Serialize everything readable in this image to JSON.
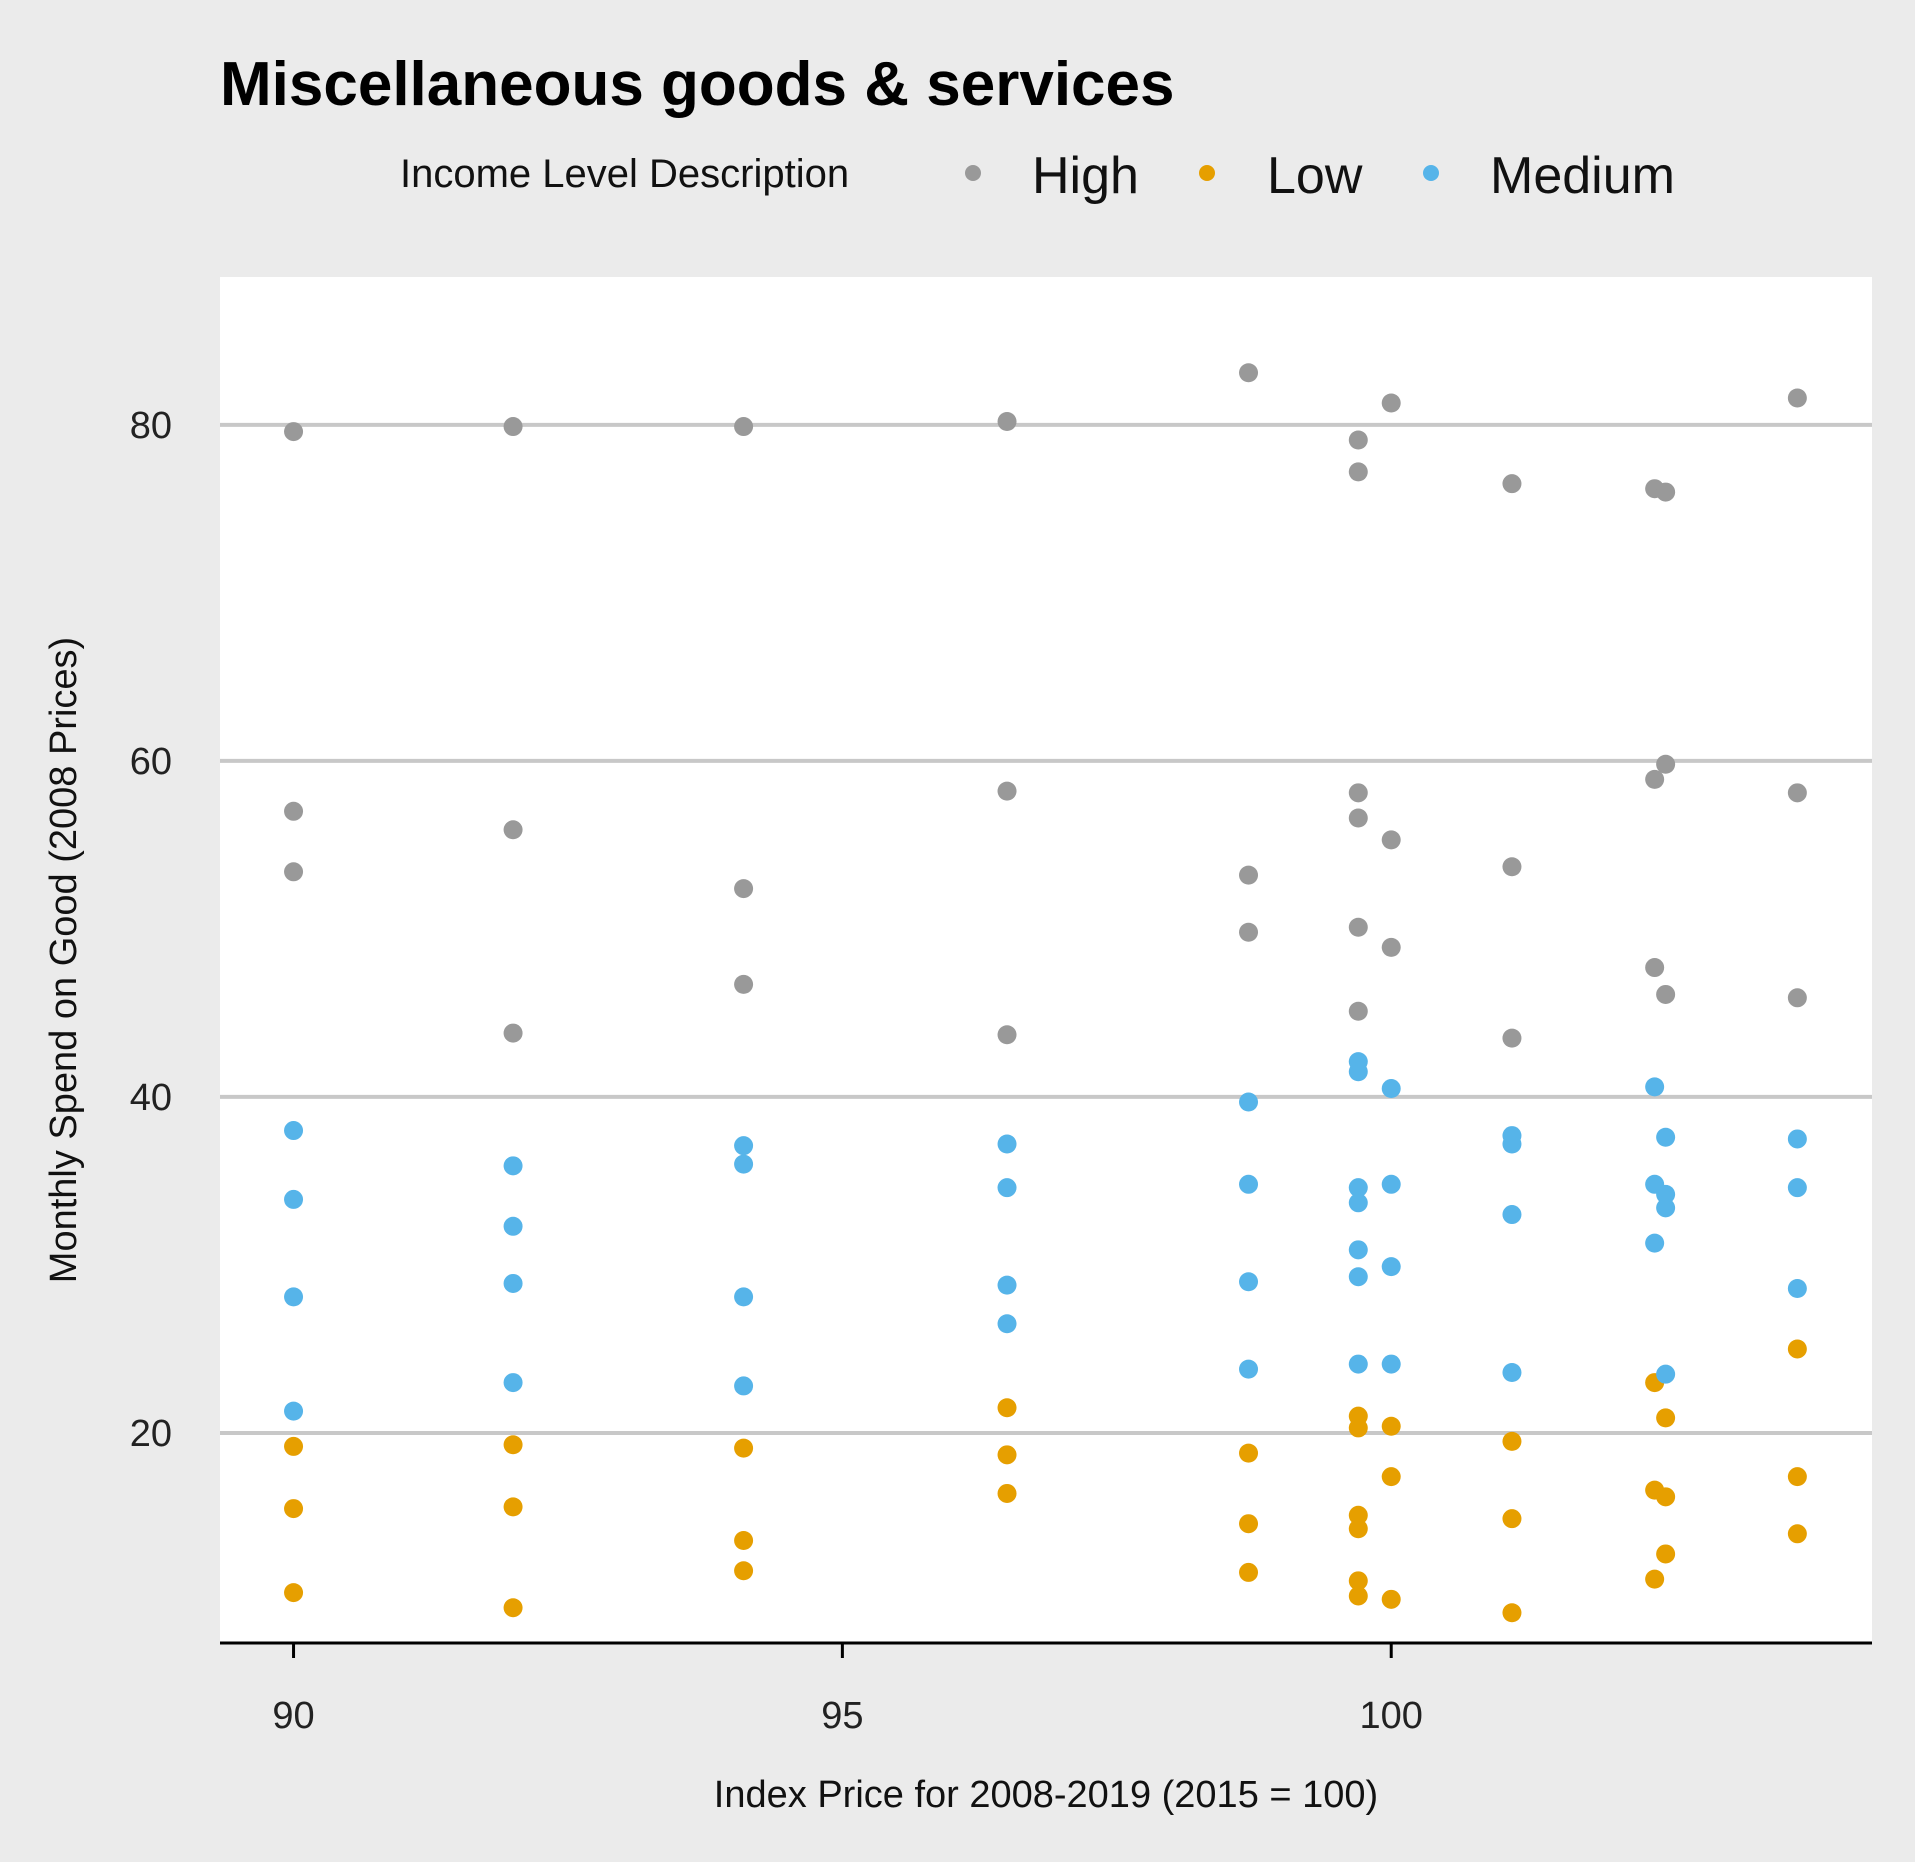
{
  "chart_data": {
    "type": "scatter",
    "title": "Miscellaneous goods & services",
    "xlabel": "Index Price for 2008-2019 (2015 = 100)",
    "ylabel": "Monthly Spend on Good (2008 Prices)",
    "xlim": [
      89.33,
      104.38
    ],
    "ylim": [
      7.5,
      88.8
    ],
    "xticks": [
      90,
      95,
      100
    ],
    "yticks": [
      20,
      40,
      60,
      80
    ],
    "grid": "horizontal-major",
    "legend": {
      "title": "Income Level Description",
      "placement": "top",
      "entries": [
        "High",
        "Low",
        "Medium"
      ]
    },
    "colors": {
      "High": "#999999",
      "Low": "#E69F00",
      "Medium": "#56B4E9"
    },
    "series": [
      {
        "name": "High",
        "points": [
          [
            90.0,
            79.6
          ],
          [
            90.0,
            57.0
          ],
          [
            90.0,
            53.4
          ],
          [
            92.0,
            79.9
          ],
          [
            92.0,
            55.9
          ],
          [
            92.0,
            43.8
          ],
          [
            94.1,
            79.9
          ],
          [
            94.1,
            52.4
          ],
          [
            94.1,
            46.7
          ],
          [
            96.5,
            80.2
          ],
          [
            96.5,
            58.2
          ],
          [
            96.5,
            43.7
          ],
          [
            98.7,
            83.1
          ],
          [
            98.7,
            53.2
          ],
          [
            98.7,
            49.8
          ],
          [
            99.7,
            79.1
          ],
          [
            99.7,
            77.2
          ],
          [
            99.7,
            58.1
          ],
          [
            99.7,
            56.6
          ],
          [
            99.7,
            50.1
          ],
          [
            99.7,
            45.1
          ],
          [
            100.0,
            81.3
          ],
          [
            100.0,
            55.3
          ],
          [
            100.0,
            48.9
          ],
          [
            101.1,
            76.5
          ],
          [
            101.1,
            53.7
          ],
          [
            101.1,
            43.5
          ],
          [
            102.4,
            76.2
          ],
          [
            102.4,
            58.9
          ],
          [
            102.4,
            47.7
          ],
          [
            102.5,
            76.0
          ],
          [
            102.5,
            59.8
          ],
          [
            102.5,
            46.1
          ],
          [
            103.7,
            81.6
          ],
          [
            103.7,
            58.1
          ],
          [
            103.7,
            45.9
          ]
        ]
      },
      {
        "name": "Low",
        "points": [
          [
            90.0,
            19.2
          ],
          [
            90.0,
            15.5
          ],
          [
            90.0,
            10.5
          ],
          [
            92.0,
            19.3
          ],
          [
            92.0,
            15.6
          ],
          [
            92.0,
            9.6
          ],
          [
            94.1,
            19.1
          ],
          [
            94.1,
            13.6
          ],
          [
            94.1,
            11.8
          ],
          [
            96.5,
            21.5
          ],
          [
            96.5,
            18.7
          ],
          [
            96.5,
            16.4
          ],
          [
            98.7,
            18.8
          ],
          [
            98.7,
            14.6
          ],
          [
            98.7,
            11.7
          ],
          [
            99.7,
            21.0
          ],
          [
            99.7,
            20.3
          ],
          [
            99.7,
            15.1
          ],
          [
            99.7,
            14.3
          ],
          [
            99.7,
            11.2
          ],
          [
            99.7,
            10.3
          ],
          [
            100.0,
            20.4
          ],
          [
            100.0,
            17.4
          ],
          [
            100.0,
            10.1
          ],
          [
            101.1,
            19.5
          ],
          [
            101.1,
            14.9
          ],
          [
            101.1,
            9.3
          ],
          [
            102.4,
            23.0
          ],
          [
            102.4,
            16.6
          ],
          [
            102.4,
            11.3
          ],
          [
            102.5,
            20.9
          ],
          [
            102.5,
            16.2
          ],
          [
            102.5,
            12.8
          ],
          [
            103.7,
            25.0
          ],
          [
            103.7,
            17.4
          ],
          [
            103.7,
            14.0
          ]
        ]
      },
      {
        "name": "Medium",
        "points": [
          [
            90.0,
            38.0
          ],
          [
            90.0,
            33.9
          ],
          [
            90.0,
            28.1
          ],
          [
            90.0,
            21.3
          ],
          [
            92.0,
            35.9
          ],
          [
            92.0,
            32.3
          ],
          [
            92.0,
            28.9
          ],
          [
            92.0,
            23.0
          ],
          [
            94.1,
            37.1
          ],
          [
            94.1,
            36.0
          ],
          [
            94.1,
            28.1
          ],
          [
            94.1,
            22.8
          ],
          [
            96.5,
            37.2
          ],
          [
            96.5,
            34.6
          ],
          [
            96.5,
            28.8
          ],
          [
            96.5,
            26.5
          ],
          [
            98.7,
            39.7
          ],
          [
            98.7,
            34.8
          ],
          [
            98.7,
            29.0
          ],
          [
            98.7,
            23.8
          ],
          [
            99.7,
            42.1
          ],
          [
            99.7,
            41.5
          ],
          [
            99.7,
            34.6
          ],
          [
            99.7,
            33.7
          ],
          [
            99.7,
            30.9
          ],
          [
            99.7,
            29.3
          ],
          [
            99.7,
            24.1
          ],
          [
            100.0,
            40.5
          ],
          [
            100.0,
            34.8
          ],
          [
            100.0,
            29.9
          ],
          [
            100.0,
            24.1
          ],
          [
            101.1,
            37.7
          ],
          [
            101.1,
            37.2
          ],
          [
            101.1,
            33.0
          ],
          [
            101.1,
            23.6
          ],
          [
            102.4,
            40.6
          ],
          [
            102.4,
            34.8
          ],
          [
            102.4,
            31.3
          ],
          [
            102.5,
            37.6
          ],
          [
            102.5,
            34.2
          ],
          [
            102.5,
            33.4
          ],
          [
            102.5,
            23.5
          ],
          [
            103.7,
            37.5
          ],
          [
            103.7,
            34.6
          ],
          [
            103.7,
            28.6
          ]
        ]
      }
    ]
  }
}
